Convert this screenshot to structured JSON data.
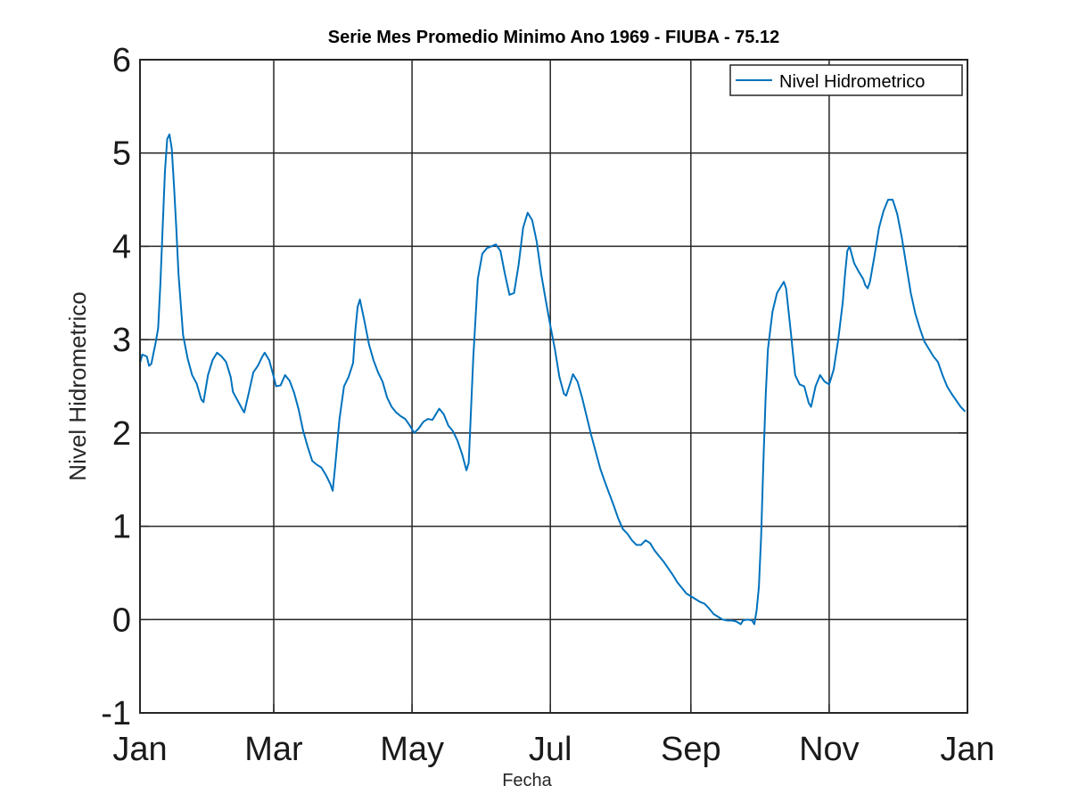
{
  "chart_data": {
    "type": "line",
    "title": "Serie Mes Promedio Minimo Ano 1969 - FIUBA - 75.12",
    "xlabel": "Fecha",
    "ylabel": "Nivel Hidrometrico",
    "xlim": [
      "1969-01-01",
      "1970-01-01"
    ],
    "ylim": [
      -1,
      6
    ],
    "grid": true,
    "legend_location": "top-right",
    "x_ticks": [
      {
        "date": "1969-01-01",
        "label": "Jan"
      },
      {
        "date": "1969-03-01",
        "label": "Mar"
      },
      {
        "date": "1969-05-01",
        "label": "May"
      },
      {
        "date": "1969-07-01",
        "label": "Jul"
      },
      {
        "date": "1969-09-01",
        "label": "Sep"
      },
      {
        "date": "1969-11-01",
        "label": "Nov"
      },
      {
        "date": "1970-01-01",
        "label": "Jan"
      }
    ],
    "y_ticks": [
      -1,
      0,
      1,
      2,
      3,
      4,
      5,
      6
    ],
    "series": [
      {
        "name": "Nivel Hidrometrico",
        "color": "#0072BD",
        "points": [
          [
            "1969-01-01",
            2.75
          ],
          [
            "1969-01-02",
            2.84
          ],
          [
            "1969-01-04",
            2.82
          ],
          [
            "1969-01-05",
            2.72
          ],
          [
            "1969-01-06",
            2.74
          ],
          [
            "1969-01-08",
            2.98
          ],
          [
            "1969-01-09",
            3.12
          ],
          [
            "1969-01-10",
            3.6
          ],
          [
            "1969-01-11",
            4.2
          ],
          [
            "1969-01-12",
            4.8
          ],
          [
            "1969-01-13",
            5.15
          ],
          [
            "1969-01-14",
            5.2
          ],
          [
            "1969-01-15",
            5.05
          ],
          [
            "1969-01-16",
            4.65
          ],
          [
            "1969-01-17",
            4.2
          ],
          [
            "1969-01-18",
            3.7
          ],
          [
            "1969-01-20",
            3.05
          ],
          [
            "1969-01-22",
            2.8
          ],
          [
            "1969-01-24",
            2.62
          ],
          [
            "1969-01-26",
            2.53
          ],
          [
            "1969-01-28",
            2.36
          ],
          [
            "1969-01-29",
            2.33
          ],
          [
            "1969-01-31",
            2.62
          ],
          [
            "1969-02-02",
            2.78
          ],
          [
            "1969-02-04",
            2.86
          ],
          [
            "1969-02-06",
            2.82
          ],
          [
            "1969-02-08",
            2.76
          ],
          [
            "1969-02-10",
            2.6
          ],
          [
            "1969-02-11",
            2.44
          ],
          [
            "1969-02-13",
            2.35
          ],
          [
            "1969-02-15",
            2.26
          ],
          [
            "1969-02-16",
            2.22
          ],
          [
            "1969-02-18",
            2.43
          ],
          [
            "1969-02-20",
            2.65
          ],
          [
            "1969-02-22",
            2.72
          ],
          [
            "1969-02-24",
            2.82
          ],
          [
            "1969-02-25",
            2.86
          ],
          [
            "1969-02-27",
            2.78
          ],
          [
            "1969-03-01",
            2.6
          ],
          [
            "1969-03-02",
            2.5
          ],
          [
            "1969-03-04",
            2.51
          ],
          [
            "1969-03-06",
            2.62
          ],
          [
            "1969-03-08",
            2.56
          ],
          [
            "1969-03-10",
            2.43
          ],
          [
            "1969-03-12",
            2.25
          ],
          [
            "1969-03-14",
            2.02
          ],
          [
            "1969-03-16",
            1.85
          ],
          [
            "1969-03-18",
            1.7
          ],
          [
            "1969-03-20",
            1.66
          ],
          [
            "1969-03-22",
            1.63
          ],
          [
            "1969-03-24",
            1.55
          ],
          [
            "1969-03-26",
            1.45
          ],
          [
            "1969-03-27",
            1.38
          ],
          [
            "1969-03-28",
            1.62
          ],
          [
            "1969-03-30",
            2.15
          ],
          [
            "1969-04-01",
            2.5
          ],
          [
            "1969-04-03",
            2.6
          ],
          [
            "1969-04-05",
            2.75
          ],
          [
            "1969-04-06",
            3.1
          ],
          [
            "1969-04-07",
            3.35
          ],
          [
            "1969-04-08",
            3.43
          ],
          [
            "1969-04-10",
            3.2
          ],
          [
            "1969-04-12",
            2.95
          ],
          [
            "1969-04-14",
            2.78
          ],
          [
            "1969-04-16",
            2.65
          ],
          [
            "1969-04-18",
            2.55
          ],
          [
            "1969-04-20",
            2.38
          ],
          [
            "1969-04-22",
            2.28
          ],
          [
            "1969-04-24",
            2.22
          ],
          [
            "1969-04-26",
            2.18
          ],
          [
            "1969-04-28",
            2.15
          ],
          [
            "1969-04-30",
            2.08
          ],
          [
            "1969-05-02",
            2.0
          ],
          [
            "1969-05-04",
            2.05
          ],
          [
            "1969-05-06",
            2.12
          ],
          [
            "1969-05-08",
            2.15
          ],
          [
            "1969-05-10",
            2.14
          ],
          [
            "1969-05-12",
            2.22
          ],
          [
            "1969-05-13",
            2.26
          ],
          [
            "1969-05-15",
            2.2
          ],
          [
            "1969-05-17",
            2.08
          ],
          [
            "1969-05-19",
            2.02
          ],
          [
            "1969-05-21",
            1.92
          ],
          [
            "1969-05-23",
            1.78
          ],
          [
            "1969-05-25",
            1.6
          ],
          [
            "1969-05-26",
            1.68
          ],
          [
            "1969-05-28",
            2.8
          ],
          [
            "1969-05-30",
            3.65
          ],
          [
            "1969-06-01",
            3.92
          ],
          [
            "1969-06-03",
            3.98
          ],
          [
            "1969-06-05",
            4.0
          ],
          [
            "1969-06-07",
            4.02
          ],
          [
            "1969-06-09",
            3.95
          ],
          [
            "1969-06-11",
            3.7
          ],
          [
            "1969-06-13",
            3.48
          ],
          [
            "1969-06-15",
            3.5
          ],
          [
            "1969-06-17",
            3.8
          ],
          [
            "1969-06-19",
            4.2
          ],
          [
            "1969-06-21",
            4.36
          ],
          [
            "1969-06-23",
            4.28
          ],
          [
            "1969-06-25",
            4.05
          ],
          [
            "1969-06-27",
            3.7
          ],
          [
            "1969-06-29",
            3.42
          ],
          [
            "1969-07-01",
            3.15
          ],
          [
            "1969-07-03",
            2.9
          ],
          [
            "1969-07-05",
            2.6
          ],
          [
            "1969-07-07",
            2.42
          ],
          [
            "1969-07-08",
            2.4
          ],
          [
            "1969-07-10",
            2.55
          ],
          [
            "1969-07-11",
            2.63
          ],
          [
            "1969-07-13",
            2.55
          ],
          [
            "1969-07-15",
            2.38
          ],
          [
            "1969-07-17",
            2.18
          ],
          [
            "1969-07-19",
            1.98
          ],
          [
            "1969-07-21",
            1.8
          ],
          [
            "1969-07-23",
            1.62
          ],
          [
            "1969-07-25",
            1.48
          ],
          [
            "1969-07-27",
            1.35
          ],
          [
            "1969-07-29",
            1.22
          ],
          [
            "1969-07-31",
            1.08
          ],
          [
            "1969-08-02",
            0.97
          ],
          [
            "1969-08-04",
            0.92
          ],
          [
            "1969-08-06",
            0.85
          ],
          [
            "1969-08-08",
            0.8
          ],
          [
            "1969-08-10",
            0.8
          ],
          [
            "1969-08-12",
            0.85
          ],
          [
            "1969-08-14",
            0.82
          ],
          [
            "1969-08-16",
            0.74
          ],
          [
            "1969-08-18",
            0.68
          ],
          [
            "1969-08-20",
            0.62
          ],
          [
            "1969-08-22",
            0.55
          ],
          [
            "1969-08-24",
            0.48
          ],
          [
            "1969-08-26",
            0.4
          ],
          [
            "1969-08-28",
            0.34
          ],
          [
            "1969-08-30",
            0.28
          ],
          [
            "1969-09-01",
            0.25
          ],
          [
            "1969-09-03",
            0.22
          ],
          [
            "1969-09-05",
            0.19
          ],
          [
            "1969-09-07",
            0.17
          ],
          [
            "1969-09-09",
            0.12
          ],
          [
            "1969-09-11",
            0.06
          ],
          [
            "1969-09-13",
            0.03
          ],
          [
            "1969-09-15",
            0.0
          ],
          [
            "1969-09-17",
            -0.01
          ],
          [
            "1969-09-19",
            -0.01
          ],
          [
            "1969-09-21",
            -0.02
          ],
          [
            "1969-09-23",
            -0.05
          ],
          [
            "1969-09-24",
            -0.01
          ],
          [
            "1969-09-26",
            0.0
          ],
          [
            "1969-09-28",
            -0.01
          ],
          [
            "1969-09-29",
            -0.05
          ],
          [
            "1969-09-30",
            0.1
          ],
          [
            "1969-10-01",
            0.35
          ],
          [
            "1969-10-02",
            0.9
          ],
          [
            "1969-10-03",
            1.7
          ],
          [
            "1969-10-04",
            2.4
          ],
          [
            "1969-10-05",
            2.9
          ],
          [
            "1969-10-07",
            3.3
          ],
          [
            "1969-10-09",
            3.5
          ],
          [
            "1969-10-11",
            3.58
          ],
          [
            "1969-10-12",
            3.62
          ],
          [
            "1969-10-13",
            3.55
          ],
          [
            "1969-10-15",
            3.1
          ],
          [
            "1969-10-17",
            2.62
          ],
          [
            "1969-10-19",
            2.52
          ],
          [
            "1969-10-21",
            2.5
          ],
          [
            "1969-10-23",
            2.32
          ],
          [
            "1969-10-24",
            2.28
          ],
          [
            "1969-10-26",
            2.5
          ],
          [
            "1969-10-28",
            2.62
          ],
          [
            "1969-10-30",
            2.55
          ],
          [
            "1969-11-01",
            2.52
          ],
          [
            "1969-11-03",
            2.68
          ],
          [
            "1969-11-05",
            3.0
          ],
          [
            "1969-11-07",
            3.4
          ],
          [
            "1969-11-08",
            3.7
          ],
          [
            "1969-11-09",
            3.95
          ],
          [
            "1969-11-10",
            4.0
          ],
          [
            "1969-11-12",
            3.82
          ],
          [
            "1969-11-14",
            3.73
          ],
          [
            "1969-11-16",
            3.65
          ],
          [
            "1969-11-17",
            3.58
          ],
          [
            "1969-11-18",
            3.55
          ],
          [
            "1969-11-19",
            3.62
          ],
          [
            "1969-11-21",
            3.9
          ],
          [
            "1969-11-23",
            4.2
          ],
          [
            "1969-11-25",
            4.38
          ],
          [
            "1969-11-27",
            4.5
          ],
          [
            "1969-11-29",
            4.5
          ],
          [
            "1969-12-01",
            4.35
          ],
          [
            "1969-12-03",
            4.1
          ],
          [
            "1969-12-05",
            3.8
          ],
          [
            "1969-12-07",
            3.5
          ],
          [
            "1969-12-09",
            3.28
          ],
          [
            "1969-12-11",
            3.12
          ],
          [
            "1969-12-13",
            2.98
          ],
          [
            "1969-12-15",
            2.9
          ],
          [
            "1969-12-17",
            2.82
          ],
          [
            "1969-12-19",
            2.76
          ],
          [
            "1969-12-21",
            2.62
          ],
          [
            "1969-12-23",
            2.5
          ],
          [
            "1969-12-25",
            2.42
          ],
          [
            "1969-12-27",
            2.35
          ],
          [
            "1969-12-29",
            2.28
          ],
          [
            "1969-12-31",
            2.23
          ]
        ]
      }
    ]
  }
}
